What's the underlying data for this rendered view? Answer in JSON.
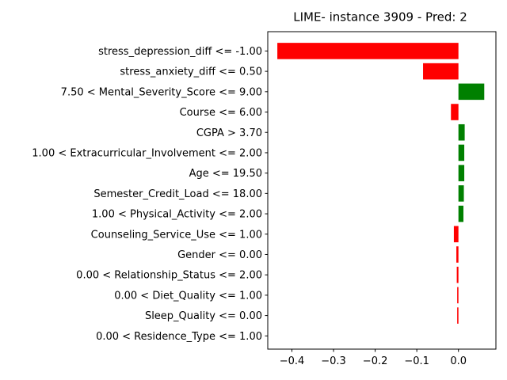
{
  "chart_data": {
    "type": "bar",
    "orientation": "horizontal",
    "title": "LIME- instance 3909 - Pred: 2",
    "xlabel": "",
    "ylabel": "",
    "xlim": [
      -0.458,
      0.09
    ],
    "xticks": [
      -0.4,
      -0.3,
      -0.2,
      -0.1,
      0.0
    ],
    "xtick_labels": [
      "−0.4",
      "−0.3",
      "−0.2",
      "−0.1",
      "0.0"
    ],
    "colors": {
      "positive": "#008000",
      "negative": "#ff0000"
    },
    "grid": false,
    "bars": [
      {
        "label": "stress_depression_diff <= -1.00",
        "value": -0.435
      },
      {
        "label": "stress_anxiety_diff <= 0.50",
        "value": -0.085
      },
      {
        "label": "7.50 < Mental_Severity_Score <= 9.00",
        "value": 0.062
      },
      {
        "label": "Course <= 6.00",
        "value": -0.018
      },
      {
        "label": "CGPA > 3.70",
        "value": 0.015
      },
      {
        "label": "1.00 < Extracurricular_Involvement <= 2.00",
        "value": 0.014
      },
      {
        "label": "Age <= 19.50",
        "value": 0.014
      },
      {
        "label": "Semester_Credit_Load <= 18.00",
        "value": 0.013
      },
      {
        "label": "1.00 < Physical_Activity <= 2.00",
        "value": 0.012
      },
      {
        "label": "Counseling_Service_Use <= 1.00",
        "value": -0.011
      },
      {
        "label": "Gender <= 0.00",
        "value": -0.005
      },
      {
        "label": "0.00 < Relationship_Status <= 2.00",
        "value": -0.004
      },
      {
        "label": "0.00 < Diet_Quality <= 1.00",
        "value": -0.003
      },
      {
        "label": "Sleep_Quality <= 0.00",
        "value": -0.003
      },
      {
        "label": "0.00 < Residence_Type <= 1.00",
        "value": 0.0
      }
    ]
  }
}
